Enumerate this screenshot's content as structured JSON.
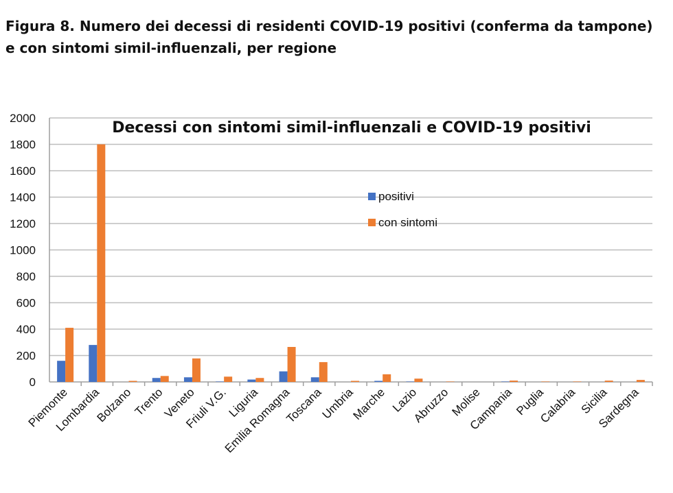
{
  "figure": {
    "title": "Figura 8. Numero dei decessi di residenti COVID-19 positivi (conferma da tampone) e con sintomi simil-influenzali, per regione"
  },
  "chart_data": {
    "type": "bar",
    "title": "Decessi con sintomi simil-influenzali e COVID-19 positivi",
    "xlabel": "",
    "ylabel": "",
    "ylim": [
      0,
      2000
    ],
    "yticks": [
      0,
      200,
      400,
      600,
      800,
      1000,
      1200,
      1400,
      1600,
      1800,
      2000
    ],
    "grid": true,
    "legend_position": "center",
    "categories": [
      "Piemonte",
      "Lombardia",
      "Bolzano",
      "Trento",
      "Veneto",
      "Friuli V.G.",
      "Liguria",
      "Emilia Romagna",
      "Toscana",
      "Umbria",
      "Marche",
      "Lazio",
      "Abruzzo",
      "Molise",
      "Campania",
      "Puglia",
      "Calabria",
      "Sicilia",
      "Sardegna"
    ],
    "series": [
      {
        "name": "positivi",
        "color": "#4472C4",
        "values": [
          160,
          280,
          0,
          30,
          35,
          3,
          18,
          80,
          35,
          0,
          8,
          3,
          0,
          0,
          3,
          0,
          0,
          0,
          0
        ]
      },
      {
        "name": "con sintomi",
        "color": "#ED7D31",
        "values": [
          410,
          1800,
          8,
          45,
          178,
          40,
          30,
          265,
          150,
          8,
          58,
          25,
          3,
          0,
          10,
          3,
          3,
          10,
          15
        ]
      }
    ]
  }
}
